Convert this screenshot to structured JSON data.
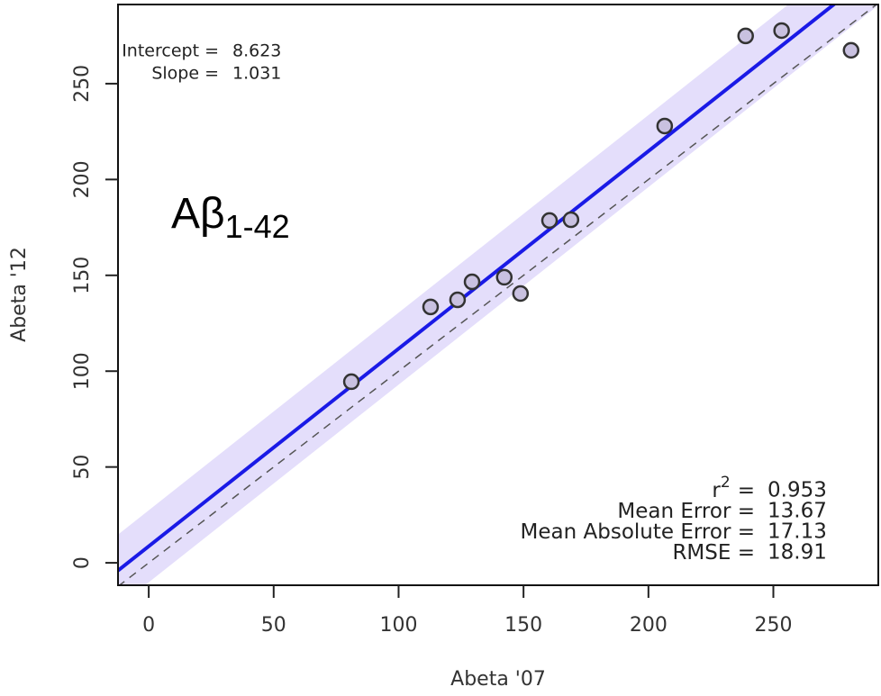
{
  "chart_data": {
    "type": "scatter",
    "x_label": "Abeta '07",
    "y_label": "Abeta '12",
    "annotation": "Aβ",
    "annotation_sub": "1-42",
    "x": [
      81.1,
      112.8,
      123.6,
      129.4,
      142.3,
      148.8,
      160.4,
      169.0,
      206.5,
      238.9,
      253.3,
      281.1
    ],
    "values": [
      94.5,
      133.5,
      137.2,
      146.6,
      149.0,
      140.5,
      178.6,
      179.0,
      227.9,
      274.9,
      277.7,
      267.4
    ],
    "color": "#c9c1e0",
    "xlim": [
      -12.3,
      292
    ],
    "ylim": [
      -11.7,
      291.3
    ],
    "xticks": [
      0,
      50,
      100,
      150,
      200,
      250
    ],
    "yticks": [
      0,
      50,
      100,
      150,
      200,
      250
    ],
    "fit": {
      "intercept_label": "Intercept =",
      "intercept": 8.623,
      "slope_label": "Slope =",
      "slope": 1.031,
      "color": "#1a1ae6"
    },
    "identity_line": true,
    "stats": [
      {
        "label": "r",
        "sup": "2",
        "suffix": "=",
        "value": 0.953
      },
      {
        "label": "Mean Error =",
        "value": 13.67
      },
      {
        "label": "Mean Absolute Error =",
        "value": 17.13
      },
      {
        "label": "RMSE =",
        "value": 18.91
      }
    ]
  }
}
